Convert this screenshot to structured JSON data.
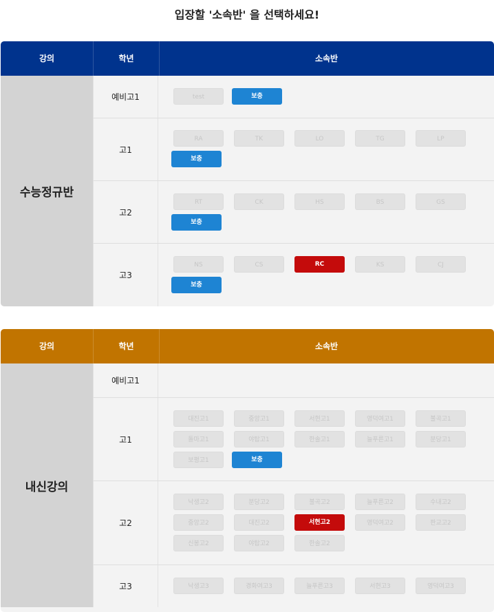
{
  "title": "입장할 '소속반' 을 선택하세요!",
  "colors": {
    "panel1_header": "#00338d",
    "panel2_header": "#c17400",
    "selected": "#c40b0b",
    "supplement": "#1e84d3"
  },
  "panel1": {
    "headers": {
      "course": "강의",
      "grade": "학년",
      "class": "소속반"
    },
    "course_name": "수능정규반",
    "rows": [
      {
        "grade": "예비고1",
        "buttons": [
          "test",
          "보충"
        ]
      },
      {
        "grade": "고1",
        "buttons": [
          "RA",
          "TK",
          "LO",
          "TG",
          "LP",
          "보충"
        ]
      },
      {
        "grade": "고2",
        "buttons": [
          "RT",
          "CK",
          "HS",
          "BS",
          "GS",
          "보충"
        ]
      },
      {
        "grade": "고3",
        "buttons": [
          "NS",
          "CS",
          "RC",
          "KS",
          "CJ",
          "보충"
        ]
      }
    ]
  },
  "panel2": {
    "headers": {
      "course": "강의",
      "grade": "학년",
      "class": "소속반"
    },
    "course_name": "내신강의",
    "rows": [
      {
        "grade": "예비고1",
        "buttons": []
      },
      {
        "grade": "고1",
        "buttons": [
          "대진고1",
          "중앙고1",
          "서현고1",
          "영덕여고1",
          "불곡고1",
          "돌마고1",
          "야탑고1",
          "한솔고1",
          "늘푸른고1",
          "분당고1",
          "보평고1",
          "보충"
        ]
      },
      {
        "grade": "고2",
        "buttons": [
          "낙생고2",
          "분당고2",
          "불곡고2",
          "늘푸른고2",
          "수내고2",
          "중앙고2",
          "대진고2",
          "서현고2",
          "영덕여고2",
          "판교고2",
          "신봉고2",
          "야탑고2",
          "한솔고2"
        ]
      },
      {
        "grade": "고3",
        "buttons": [
          "낙생고3",
          "경화여고3",
          "늘푸른고3",
          "서현고3",
          "영덕여고3"
        ]
      }
    ]
  }
}
